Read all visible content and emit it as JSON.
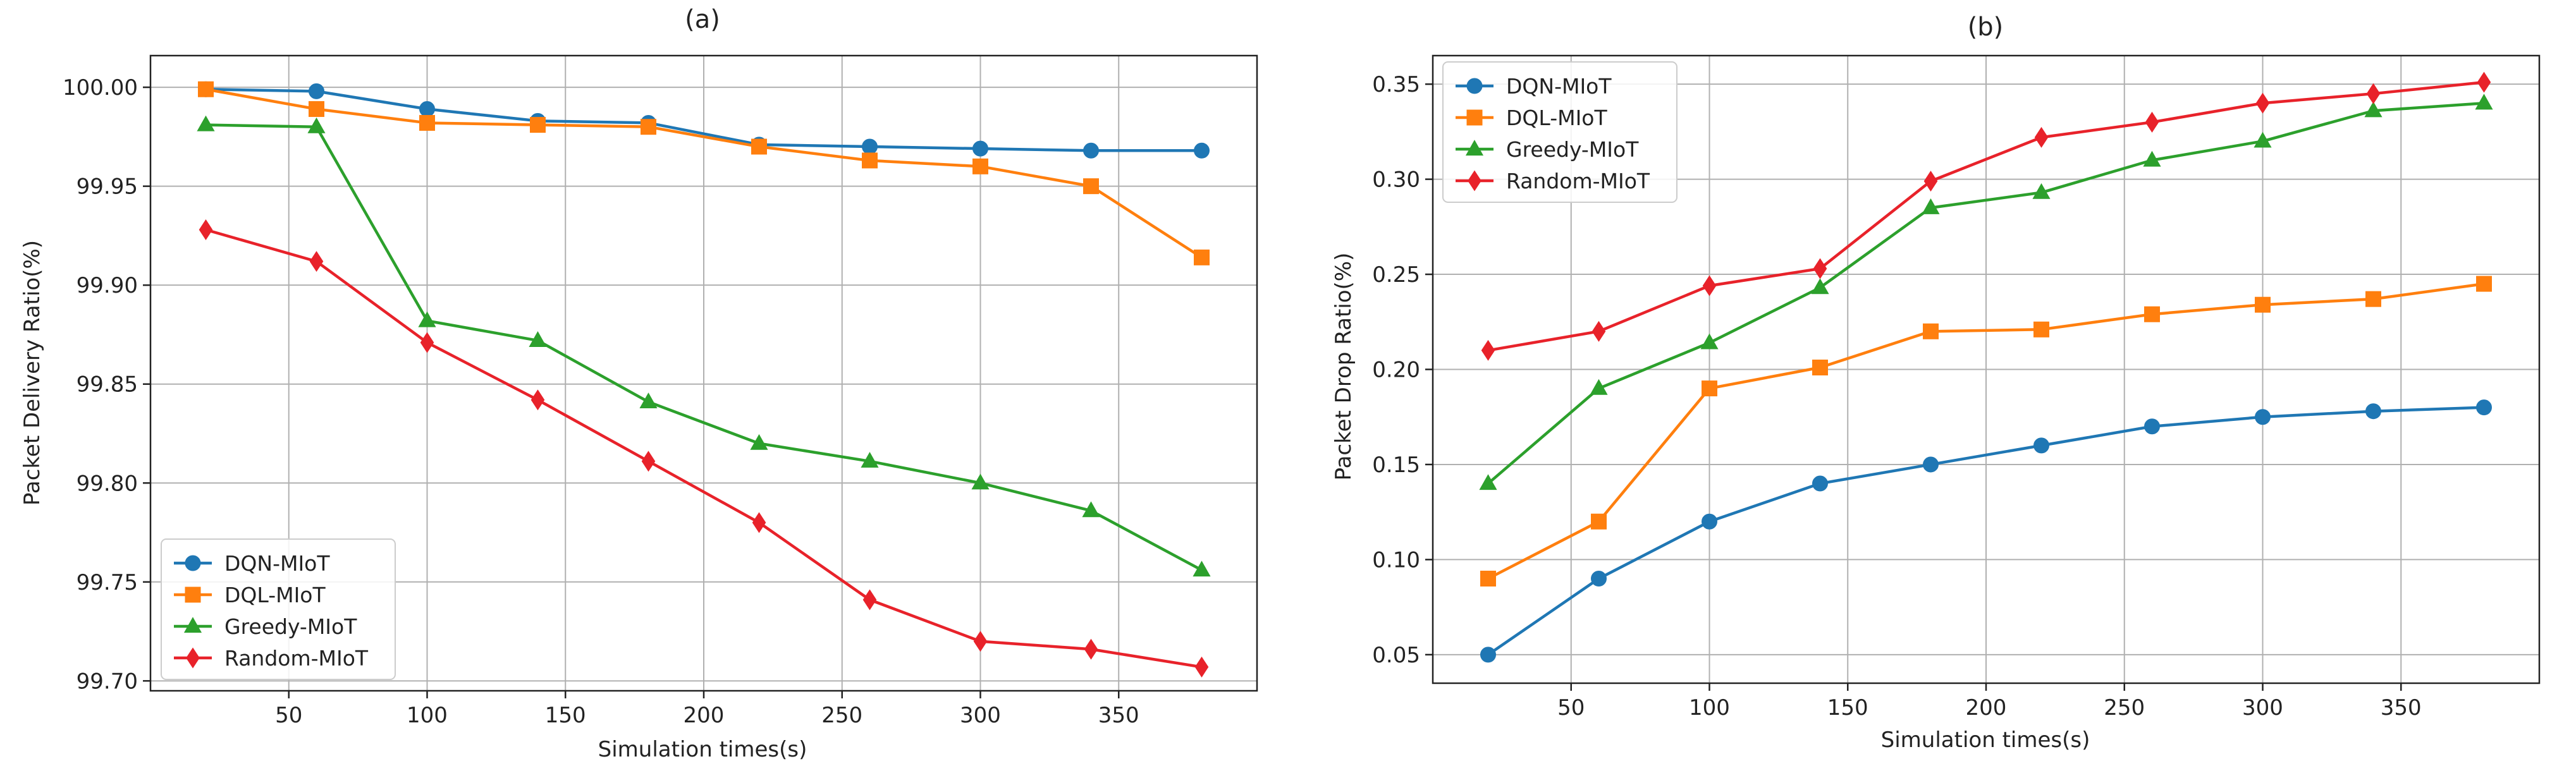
{
  "chart_data": [
    {
      "type": "line",
      "title": "(a)",
      "xlabel": "Simulation times(s)",
      "ylabel": "Packet Delivery Ratio(%)",
      "x": [
        20,
        60,
        100,
        140,
        180,
        220,
        260,
        300,
        340,
        380
      ],
      "xlim": [
        0,
        400
      ],
      "ylim": [
        99.695,
        100.016
      ],
      "xticks": [
        50,
        100,
        150,
        200,
        250,
        300,
        350
      ],
      "yticks": [
        99.7,
        99.75,
        99.8,
        99.85,
        99.9,
        99.95,
        100.0
      ],
      "ytick_decimals": 2,
      "grid": true,
      "legend_position": "lower-left",
      "series": [
        {
          "name": "DQN-MIoT",
          "color": "#1f77b4",
          "marker": "circle",
          "values": [
            99.999,
            99.998,
            99.989,
            99.983,
            99.982,
            99.971,
            99.97,
            99.969,
            99.968,
            99.968
          ]
        },
        {
          "name": "DQL-MIoT",
          "color": "#ff7f0e",
          "marker": "square",
          "values": [
            99.999,
            99.989,
            99.982,
            99.981,
            99.98,
            99.97,
            99.963,
            99.96,
            99.95,
            99.914
          ]
        },
        {
          "name": "Greedy-MIoT",
          "color": "#2ca02c",
          "marker": "triangle",
          "values": [
            99.981,
            99.98,
            99.882,
            99.872,
            99.841,
            99.82,
            99.811,
            99.8,
            99.786,
            99.756
          ]
        },
        {
          "name": "Random-MIoT",
          "color": "#e8222a",
          "marker": "diamond",
          "values": [
            99.928,
            99.912,
            99.871,
            99.842,
            99.811,
            99.78,
            99.741,
            99.72,
            99.716,
            99.707
          ]
        }
      ]
    },
    {
      "type": "line",
      "title": "(b)",
      "xlabel": "Simulation times(s)",
      "ylabel": "Packet Drop Ratio(%)",
      "x": [
        20,
        60,
        100,
        140,
        180,
        220,
        260,
        300,
        340,
        380
      ],
      "xlim": [
        0,
        400
      ],
      "ylim": [
        0.035,
        0.365
      ],
      "xticks": [
        50,
        100,
        150,
        200,
        250,
        300,
        350
      ],
      "yticks": [
        0.05,
        0.1,
        0.15,
        0.2,
        0.25,
        0.3,
        0.35
      ],
      "ytick_decimals": 2,
      "grid": true,
      "legend_position": "top-left",
      "series": [
        {
          "name": "DQN-MIoT",
          "color": "#1f77b4",
          "marker": "circle",
          "values": [
            0.05,
            0.09,
            0.12,
            0.14,
            0.15,
            0.16,
            0.17,
            0.175,
            0.178,
            0.18
          ]
        },
        {
          "name": "DQL-MIoT",
          "color": "#ff7f0e",
          "marker": "square",
          "values": [
            0.09,
            0.12,
            0.19,
            0.201,
            0.22,
            0.221,
            0.229,
            0.234,
            0.237,
            0.245
          ]
        },
        {
          "name": "Greedy-MIoT",
          "color": "#2ca02c",
          "marker": "triangle",
          "values": [
            0.14,
            0.19,
            0.214,
            0.243,
            0.285,
            0.293,
            0.31,
            0.32,
            0.336,
            0.34
          ]
        },
        {
          "name": "Random-MIoT",
          "color": "#e8222a",
          "marker": "diamond",
          "values": [
            0.21,
            0.22,
            0.244,
            0.253,
            0.299,
            0.322,
            0.33,
            0.34,
            0.345,
            0.351
          ]
        }
      ]
    }
  ]
}
